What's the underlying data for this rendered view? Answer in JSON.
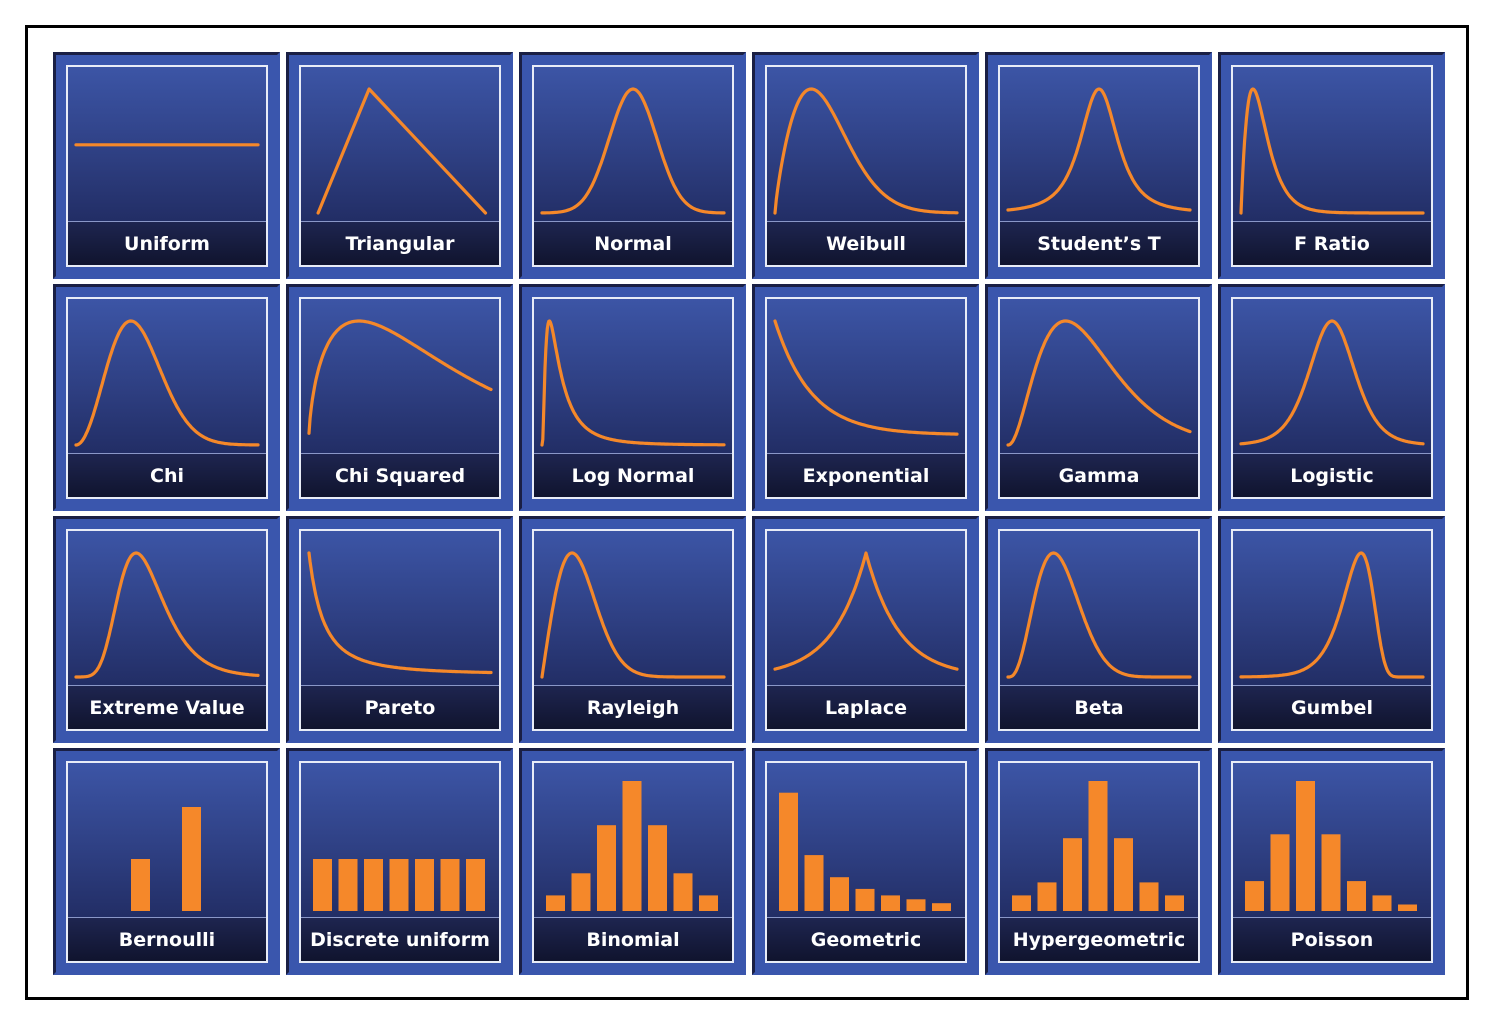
{
  "colors": {
    "curve": "#f5882a",
    "tile_border": "#3a56ad",
    "panel_top": "#3c55a6",
    "panel_bottom": "#1a2252",
    "label_bg": "#10142e",
    "label_text": "#ffffff"
  },
  "tiles": [
    {
      "label": "Uniform",
      "kind": "uniform"
    },
    {
      "label": "Triangular",
      "kind": "triangular"
    },
    {
      "label": "Normal",
      "kind": "normal"
    },
    {
      "label": "Weibull",
      "kind": "weibull"
    },
    {
      "label": "Student’s T",
      "kind": "studentt"
    },
    {
      "label": "F Ratio",
      "kind": "fratio"
    },
    {
      "label": "Chi",
      "kind": "chi"
    },
    {
      "label": "Chi Squared",
      "kind": "chisquared"
    },
    {
      "label": "Log Normal",
      "kind": "lognormal"
    },
    {
      "label": "Exponential",
      "kind": "exponential"
    },
    {
      "label": "Gamma",
      "kind": "gamma"
    },
    {
      "label": "Logistic",
      "kind": "logistic"
    },
    {
      "label": "Extreme Value",
      "kind": "extremevalue"
    },
    {
      "label": "Pareto",
      "kind": "pareto"
    },
    {
      "label": "Rayleigh",
      "kind": "rayleigh"
    },
    {
      "label": "Laplace",
      "kind": "laplace"
    },
    {
      "label": "Beta",
      "kind": "beta"
    },
    {
      "label": "Gumbel",
      "kind": "gumbel"
    },
    {
      "label": "Bernoulli",
      "kind": "bars",
      "bars": [
        0,
        0,
        0.4,
        0,
        0.8,
        0,
        0
      ]
    },
    {
      "label": "Discrete uniform",
      "kind": "bars",
      "bars": [
        0.4,
        0.4,
        0.4,
        0.4,
        0.4,
        0.4,
        0.4
      ]
    },
    {
      "label": "Binomial",
      "kind": "bars",
      "bars": [
        0.12,
        0.29,
        0.66,
        1.0,
        0.66,
        0.29,
        0.12
      ]
    },
    {
      "label": "Geometric",
      "kind": "bars",
      "bars": [
        0.91,
        0.43,
        0.26,
        0.17,
        0.12,
        0.09,
        0.06
      ]
    },
    {
      "label": "Hypergeometric",
      "kind": "bars",
      "bars": [
        0.12,
        0.22,
        0.56,
        1.0,
        0.56,
        0.22,
        0.12
      ]
    },
    {
      "label": "Poisson",
      "kind": "bars",
      "bars": [
        0.23,
        0.59,
        1.0,
        0.59,
        0.23,
        0.12,
        0.05
      ]
    }
  ]
}
